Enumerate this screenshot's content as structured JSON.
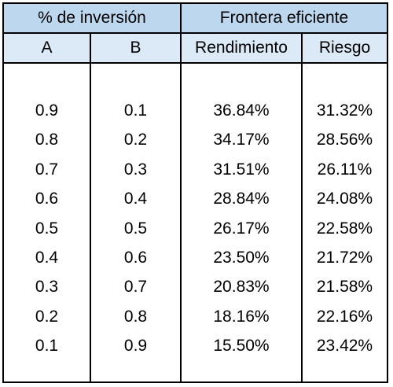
{
  "headers": {
    "group_inversion": "% de inversión",
    "group_frontera": "Frontera eficiente",
    "col_a": "A",
    "col_b": "B",
    "col_rendimiento": "Rendimiento",
    "col_riesgo": "Riesgo"
  },
  "rows": [
    {
      "a": "0.9",
      "b": "0.1",
      "rendimiento": "36.84%",
      "riesgo": "31.32%"
    },
    {
      "a": "0.8",
      "b": "0.2",
      "rendimiento": "34.17%",
      "riesgo": "28.56%"
    },
    {
      "a": "0.7",
      "b": "0.3",
      "rendimiento": "31.51%",
      "riesgo": "26.11%"
    },
    {
      "a": "0.6",
      "b": "0.4",
      "rendimiento": "28.84%",
      "riesgo": "24.08%"
    },
    {
      "a": "0.5",
      "b": "0.5",
      "rendimiento": "26.17%",
      "riesgo": "22.58%"
    },
    {
      "a": "0.4",
      "b": "0.6",
      "rendimiento": "23.50%",
      "riesgo": "21.72%"
    },
    {
      "a": "0.3",
      "b": "0.7",
      "rendimiento": "20.83%",
      "riesgo": "21.58%"
    },
    {
      "a": "0.2",
      "b": "0.8",
      "rendimiento": "18.16%",
      "riesgo": "22.16%"
    },
    {
      "a": "0.1",
      "b": "0.9",
      "rendimiento": "15.50%",
      "riesgo": "23.42%"
    }
  ],
  "colors": {
    "header_group_bg": "#bdd7ee",
    "header_col_bg": "#dce9f6",
    "border": "#000000"
  }
}
